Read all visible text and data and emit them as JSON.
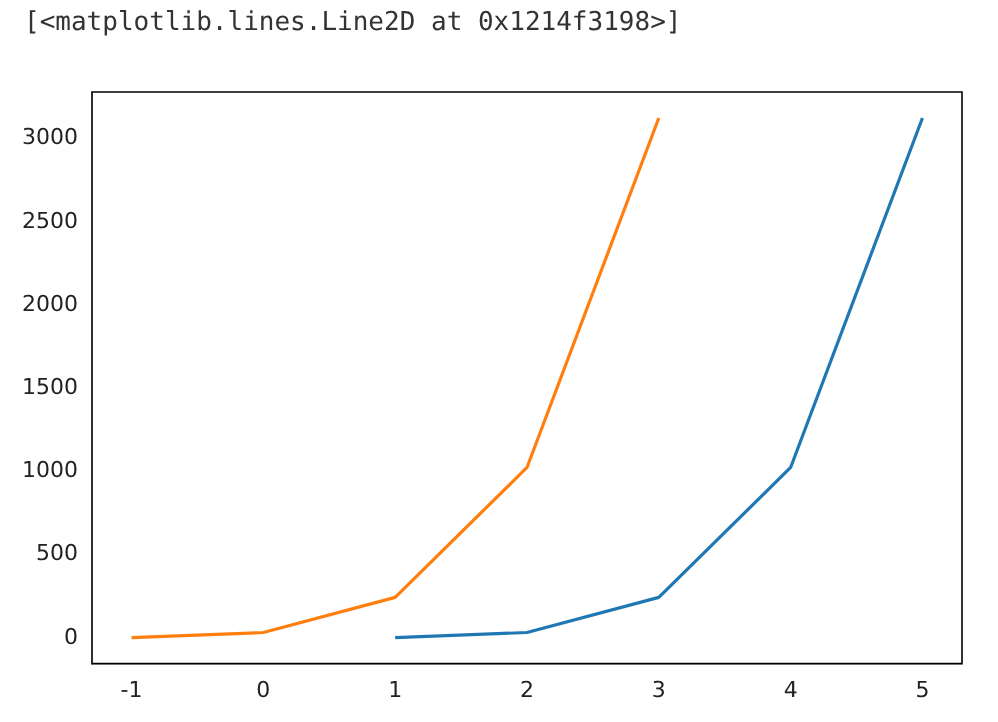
{
  "chart_data": {
    "type": "line",
    "annotations": [
      "[<matplotlib.lines.Line2D at 0x1214f3198>]"
    ],
    "marker": "none",
    "xlim": [
      -1.3,
      5.3
    ],
    "xticks": [
      -1,
      0,
      1,
      2,
      3,
      4,
      5
    ],
    "ylim": [
      -155,
      3281
    ],
    "yticks": [
      0,
      500,
      1000,
      1500,
      2000,
      2500,
      3000
    ],
    "series": [
      {
        "color": "#1f77b4",
        "x": [
          1,
          2,
          3,
          4,
          5
        ],
        "values": [
          1,
          32,
          243,
          1024,
          3125
        ]
      },
      {
        "color": "#ff7f0e",
        "x": [
          -1,
          0,
          1,
          2,
          3
        ],
        "values": [
          1,
          32,
          243,
          1024,
          3125
        ]
      }
    ]
  }
}
